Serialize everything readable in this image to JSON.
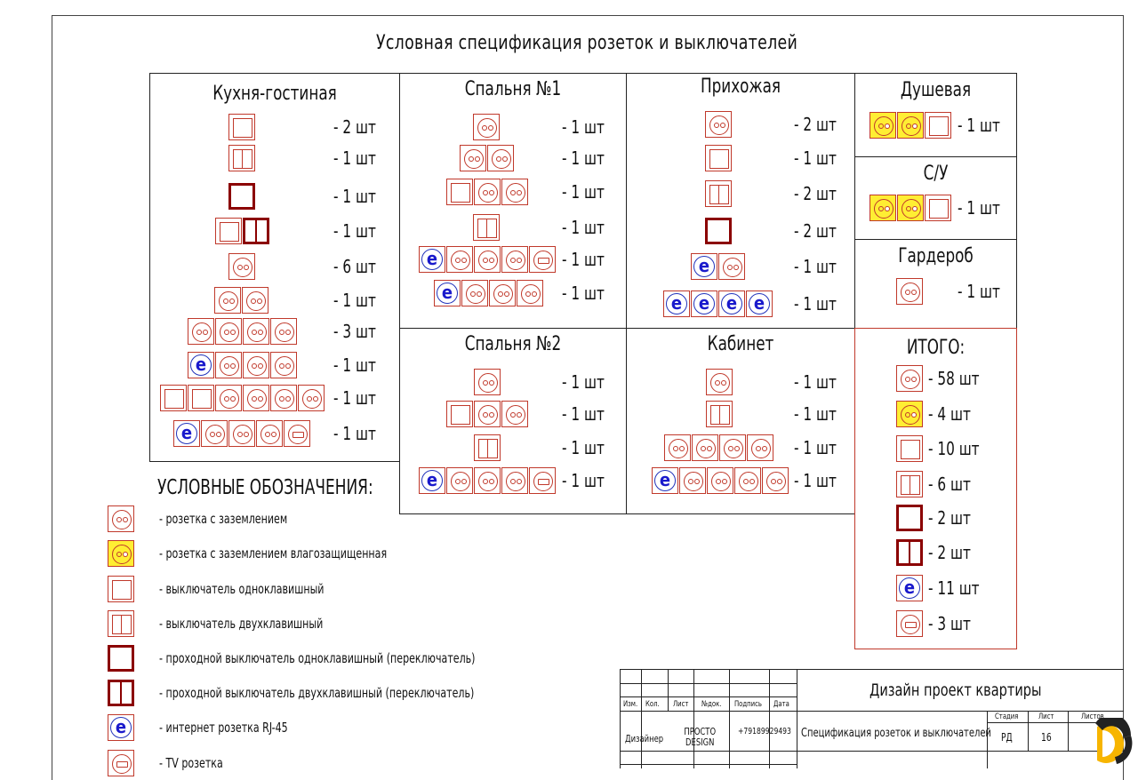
{
  "title": "Условная спецификация розеток и выключателей",
  "rooms": {
    "kitchen": {
      "name": "Кухня-гостиная",
      "counts": [
        "- 2 шт",
        "- 1 шт",
        "- 1 шт",
        "- 1 шт",
        "- 6 шт",
        "- 1 шт",
        "- 3 шт",
        "- 1 шт",
        "- 1 шт",
        "- 1 шт"
      ]
    },
    "bed1": {
      "name": "Спальня №1",
      "counts": [
        "- 1 шт",
        "- 1 шт",
        "- 1 шт",
        "- 1 шт",
        "- 1 шт",
        "- 1 шт"
      ]
    },
    "hall": {
      "name": "Прихожая",
      "counts": [
        "- 2 шт",
        "- 1 шт",
        "- 2 шт",
        "- 2 шт",
        "- 1 шт",
        "- 1 шт"
      ]
    },
    "shower": {
      "name": "Душевая",
      "counts": [
        "- 1 шт"
      ]
    },
    "wc": {
      "name": "С/У",
      "counts": [
        "- 1 шт"
      ]
    },
    "wardrobe": {
      "name": "Гардероб",
      "counts": [
        "- 1 шт"
      ]
    },
    "bed2": {
      "name": "Спальня №2",
      "counts": [
        "- 1 шт",
        "- 1 шт",
        "- 1 шт",
        "- 1 шт"
      ]
    },
    "office": {
      "name": "Кабинет",
      "counts": [
        "- 1 шт",
        "- 1 шт",
        "- 1 шт",
        "- 1 шт"
      ]
    },
    "total": {
      "name": "ИТОГО:",
      "counts": [
        "- 58 шт",
        "- 4 шт",
        "- 10 шт",
        "- 6 шт",
        "- 2 шт",
        "- 2 шт",
        "- 11 шт",
        "- 3 шт"
      ]
    }
  },
  "legend": {
    "heading": "УСЛОВНЫЕ ОБОЗНАЧЕНИЯ:",
    "items": [
      "- розетка с заземлением",
      "- розетка с заземлением влагозащищенная",
      "- выключатель одноклавишный",
      "- выключатель двухклавишный",
      "- проходной выключатель одноклавишный (переключатель)",
      "- проходной выключатель двухклавишный (переключатель)",
      "- интернет розетка RJ-45",
      "- TV розетка"
    ]
  },
  "stamp": {
    "project": "Дизайн проект квартиры",
    "sheet_title": "Спецификация розеток и выключателей",
    "h_izm": "Изм.",
    "h_kol": "Кол.",
    "h_list": "Лист",
    "h_ndok": "№док.",
    "h_podpis": "Подпись",
    "h_data": "Дата",
    "role": "Дизайнер",
    "company": "ПРОСТО DESIGN",
    "phone": "+79189929493",
    "h_stage": "Стадия",
    "h_sheet": "Лист",
    "h_sheets": "Листов",
    "stage": "РД",
    "sheet": "16"
  },
  "icon_glyph": "e",
  "colors": {
    "accent_red": "#c0392b",
    "dark_red": "#8b0000",
    "wet_yellow": "#ffee33",
    "net_blue": "#1a1acc"
  }
}
